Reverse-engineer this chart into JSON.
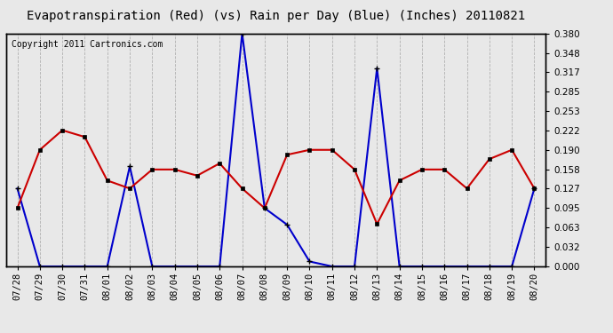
{
  "title": "Evapotranspiration (Red) (vs) Rain per Day (Blue) (Inches) 20110821",
  "copyright": "Copyright 2011 Cartronics.com",
  "labels": [
    "07/28",
    "07/29",
    "07/30",
    "07/31",
    "08/01",
    "08/02",
    "08/03",
    "08/04",
    "08/05",
    "08/06",
    "08/07",
    "08/08",
    "08/09",
    "08/10",
    "08/11",
    "08/12",
    "08/13",
    "08/14",
    "08/15",
    "08/16",
    "08/17",
    "08/18",
    "08/19",
    "08/20"
  ],
  "red_data": [
    0.095,
    0.19,
    0.222,
    0.211,
    0.14,
    0.127,
    0.158,
    0.158,
    0.148,
    0.168,
    0.127,
    0.095,
    0.182,
    0.19,
    0.19,
    0.158,
    0.069,
    0.14,
    0.158,
    0.158,
    0.127,
    0.175,
    0.19,
    0.127
  ],
  "blue_data": [
    0.127,
    0.0,
    0.0,
    0.0,
    0.0,
    0.163,
    0.0,
    0.0,
    0.0,
    0.0,
    0.38,
    0.095,
    0.068,
    0.008,
    0.0,
    0.0,
    0.323,
    0.0,
    0.0,
    0.0,
    0.0,
    0.0,
    0.0,
    0.127
  ],
  "ylim": [
    0.0,
    0.38
  ],
  "yticks": [
    0.0,
    0.032,
    0.063,
    0.095,
    0.127,
    0.158,
    0.19,
    0.222,
    0.253,
    0.285,
    0.317,
    0.348,
    0.38
  ],
  "red_color": "#cc0000",
  "blue_color": "#0000cc",
  "bg_color": "#e8e8e8",
  "plot_bg_color": "#e8e8e8",
  "grid_color": "#aaaaaa",
  "title_fontsize": 10,
  "tick_fontsize": 7.5,
  "copyright_fontsize": 7
}
